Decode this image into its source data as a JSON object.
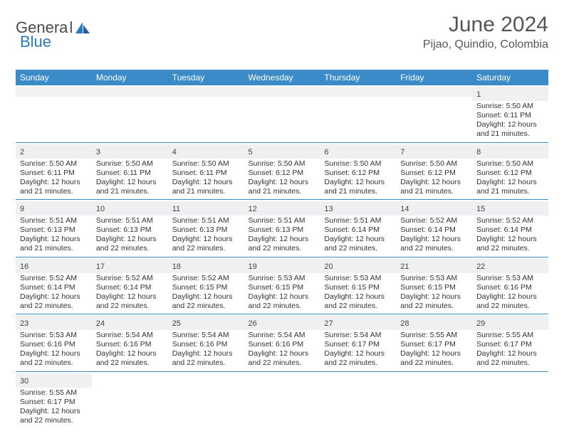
{
  "brand": {
    "part1": "Genera",
    "part2": "l",
    "part3": "Blue"
  },
  "title": "June 2024",
  "location": "Pijao, Quindio, Colombia",
  "headers": [
    "Sunday",
    "Monday",
    "Tuesday",
    "Wednesday",
    "Thursday",
    "Friday",
    "Saturday"
  ],
  "colors": {
    "header_bg": "#3b8bc9",
    "header_fg": "#ffffff",
    "daynum_bg": "#eef0f1",
    "rule": "#3b8bc9",
    "title_fg": "#555555",
    "logo_gray": "#4a4a4a",
    "logo_blue": "#2b7abf"
  },
  "weeks": [
    [
      null,
      null,
      null,
      null,
      null,
      null,
      {
        "n": "1",
        "sr": "Sunrise: 5:50 AM",
        "ss": "Sunset: 6:11 PM",
        "d1": "Daylight: 12 hours",
        "d2": "and 21 minutes."
      }
    ],
    [
      {
        "n": "2",
        "sr": "Sunrise: 5:50 AM",
        "ss": "Sunset: 6:11 PM",
        "d1": "Daylight: 12 hours",
        "d2": "and 21 minutes."
      },
      {
        "n": "3",
        "sr": "Sunrise: 5:50 AM",
        "ss": "Sunset: 6:11 PM",
        "d1": "Daylight: 12 hours",
        "d2": "and 21 minutes."
      },
      {
        "n": "4",
        "sr": "Sunrise: 5:50 AM",
        "ss": "Sunset: 6:11 PM",
        "d1": "Daylight: 12 hours",
        "d2": "and 21 minutes."
      },
      {
        "n": "5",
        "sr": "Sunrise: 5:50 AM",
        "ss": "Sunset: 6:12 PM",
        "d1": "Daylight: 12 hours",
        "d2": "and 21 minutes."
      },
      {
        "n": "6",
        "sr": "Sunrise: 5:50 AM",
        "ss": "Sunset: 6:12 PM",
        "d1": "Daylight: 12 hours",
        "d2": "and 21 minutes."
      },
      {
        "n": "7",
        "sr": "Sunrise: 5:50 AM",
        "ss": "Sunset: 6:12 PM",
        "d1": "Daylight: 12 hours",
        "d2": "and 21 minutes."
      },
      {
        "n": "8",
        "sr": "Sunrise: 5:50 AM",
        "ss": "Sunset: 6:12 PM",
        "d1": "Daylight: 12 hours",
        "d2": "and 21 minutes."
      }
    ],
    [
      {
        "n": "9",
        "sr": "Sunrise: 5:51 AM",
        "ss": "Sunset: 6:13 PM",
        "d1": "Daylight: 12 hours",
        "d2": "and 21 minutes."
      },
      {
        "n": "10",
        "sr": "Sunrise: 5:51 AM",
        "ss": "Sunset: 6:13 PM",
        "d1": "Daylight: 12 hours",
        "d2": "and 22 minutes."
      },
      {
        "n": "11",
        "sr": "Sunrise: 5:51 AM",
        "ss": "Sunset: 6:13 PM",
        "d1": "Daylight: 12 hours",
        "d2": "and 22 minutes."
      },
      {
        "n": "12",
        "sr": "Sunrise: 5:51 AM",
        "ss": "Sunset: 6:13 PM",
        "d1": "Daylight: 12 hours",
        "d2": "and 22 minutes."
      },
      {
        "n": "13",
        "sr": "Sunrise: 5:51 AM",
        "ss": "Sunset: 6:14 PM",
        "d1": "Daylight: 12 hours",
        "d2": "and 22 minutes."
      },
      {
        "n": "14",
        "sr": "Sunrise: 5:52 AM",
        "ss": "Sunset: 6:14 PM",
        "d1": "Daylight: 12 hours",
        "d2": "and 22 minutes."
      },
      {
        "n": "15",
        "sr": "Sunrise: 5:52 AM",
        "ss": "Sunset: 6:14 PM",
        "d1": "Daylight: 12 hours",
        "d2": "and 22 minutes."
      }
    ],
    [
      {
        "n": "16",
        "sr": "Sunrise: 5:52 AM",
        "ss": "Sunset: 6:14 PM",
        "d1": "Daylight: 12 hours",
        "d2": "and 22 minutes."
      },
      {
        "n": "17",
        "sr": "Sunrise: 5:52 AM",
        "ss": "Sunset: 6:14 PM",
        "d1": "Daylight: 12 hours",
        "d2": "and 22 minutes."
      },
      {
        "n": "18",
        "sr": "Sunrise: 5:52 AM",
        "ss": "Sunset: 6:15 PM",
        "d1": "Daylight: 12 hours",
        "d2": "and 22 minutes."
      },
      {
        "n": "19",
        "sr": "Sunrise: 5:53 AM",
        "ss": "Sunset: 6:15 PM",
        "d1": "Daylight: 12 hours",
        "d2": "and 22 minutes."
      },
      {
        "n": "20",
        "sr": "Sunrise: 5:53 AM",
        "ss": "Sunset: 6:15 PM",
        "d1": "Daylight: 12 hours",
        "d2": "and 22 minutes."
      },
      {
        "n": "21",
        "sr": "Sunrise: 5:53 AM",
        "ss": "Sunset: 6:15 PM",
        "d1": "Daylight: 12 hours",
        "d2": "and 22 minutes."
      },
      {
        "n": "22",
        "sr": "Sunrise: 5:53 AM",
        "ss": "Sunset: 6:16 PM",
        "d1": "Daylight: 12 hours",
        "d2": "and 22 minutes."
      }
    ],
    [
      {
        "n": "23",
        "sr": "Sunrise: 5:53 AM",
        "ss": "Sunset: 6:16 PM",
        "d1": "Daylight: 12 hours",
        "d2": "and 22 minutes."
      },
      {
        "n": "24",
        "sr": "Sunrise: 5:54 AM",
        "ss": "Sunset: 6:16 PM",
        "d1": "Daylight: 12 hours",
        "d2": "and 22 minutes."
      },
      {
        "n": "25",
        "sr": "Sunrise: 5:54 AM",
        "ss": "Sunset: 6:16 PM",
        "d1": "Daylight: 12 hours",
        "d2": "and 22 minutes."
      },
      {
        "n": "26",
        "sr": "Sunrise: 5:54 AM",
        "ss": "Sunset: 6:16 PM",
        "d1": "Daylight: 12 hours",
        "d2": "and 22 minutes."
      },
      {
        "n": "27",
        "sr": "Sunrise: 5:54 AM",
        "ss": "Sunset: 6:17 PM",
        "d1": "Daylight: 12 hours",
        "d2": "and 22 minutes."
      },
      {
        "n": "28",
        "sr": "Sunrise: 5:55 AM",
        "ss": "Sunset: 6:17 PM",
        "d1": "Daylight: 12 hours",
        "d2": "and 22 minutes."
      },
      {
        "n": "29",
        "sr": "Sunrise: 5:55 AM",
        "ss": "Sunset: 6:17 PM",
        "d1": "Daylight: 12 hours",
        "d2": "and 22 minutes."
      }
    ],
    [
      {
        "n": "30",
        "sr": "Sunrise: 5:55 AM",
        "ss": "Sunset: 6:17 PM",
        "d1": "Daylight: 12 hours",
        "d2": "and 22 minutes."
      },
      null,
      null,
      null,
      null,
      null,
      null
    ]
  ]
}
